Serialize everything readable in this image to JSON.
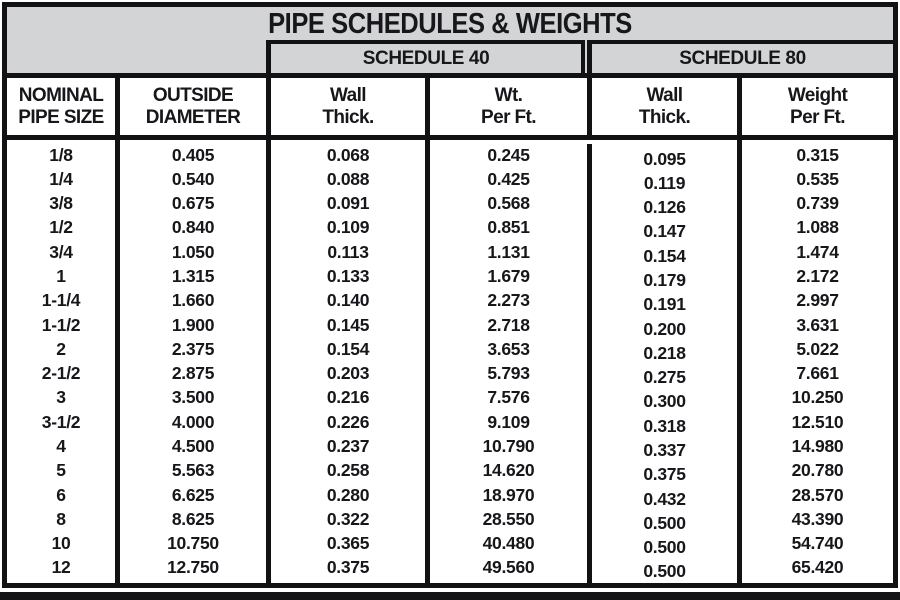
{
  "title": "PIPE SCHEDULES & WEIGHTS",
  "schedules": {
    "s40_label": "SCHEDULE 40",
    "s80_label": "SCHEDULE 80"
  },
  "column_headers": [
    {
      "line1": "NOMINAL",
      "line2": "PIPE SIZE"
    },
    {
      "line1": "OUTSIDE",
      "line2": "DIAMETER"
    },
    {
      "line1": "Wall",
      "line2": "Thick."
    },
    {
      "line1": "Wt.",
      "line2": "Per Ft."
    },
    {
      "line1": "Wall",
      "line2": "Thick."
    },
    {
      "line1": "Weight",
      "line2": "Per Ft."
    }
  ],
  "chart_data": {
    "type": "table",
    "columns": [
      "Nominal Pipe Size",
      "Outside Diameter",
      "Schedule 40 Wall Thick.",
      "Schedule 40 Wt. Per Ft.",
      "Schedule 80 Wall Thick.",
      "Schedule 80 Weight Per Ft."
    ],
    "rows": [
      {
        "size": "1/8",
        "od": "0.405",
        "s40_wall": "0.068",
        "s40_wt": "0.245",
        "s80_wall": "0.095",
        "s80_wt": "0.315"
      },
      {
        "size": "1/4",
        "od": "0.540",
        "s40_wall": "0.088",
        "s40_wt": "0.425",
        "s80_wall": "0.119",
        "s80_wt": "0.535"
      },
      {
        "size": "3/8",
        "od": "0.675",
        "s40_wall": "0.091",
        "s40_wt": "0.568",
        "s80_wall": "0.126",
        "s80_wt": "0.739"
      },
      {
        "size": "1/2",
        "od": "0.840",
        "s40_wall": "0.109",
        "s40_wt": "0.851",
        "s80_wall": "0.147",
        "s80_wt": "1.088"
      },
      {
        "size": "3/4",
        "od": "1.050",
        "s40_wall": "0.113",
        "s40_wt": "1.131",
        "s80_wall": "0.154",
        "s80_wt": "1.474"
      },
      {
        "size": "1",
        "od": "1.315",
        "s40_wall": "0.133",
        "s40_wt": "1.679",
        "s80_wall": "0.179",
        "s80_wt": "2.172"
      },
      {
        "size": "1-1/4",
        "od": "1.660",
        "s40_wall": "0.140",
        "s40_wt": "2.273",
        "s80_wall": "0.191",
        "s80_wt": "2.997"
      },
      {
        "size": "1-1/2",
        "od": "1.900",
        "s40_wall": "0.145",
        "s40_wt": "2.718",
        "s80_wall": "0.200",
        "s80_wt": "3.631"
      },
      {
        "size": "2",
        "od": "2.375",
        "s40_wall": "0.154",
        "s40_wt": "3.653",
        "s80_wall": "0.218",
        "s80_wt": "5.022"
      },
      {
        "size": "2-1/2",
        "od": "2.875",
        "s40_wall": "0.203",
        "s40_wt": "5.793",
        "s80_wall": "0.275",
        "s80_wt": "7.661"
      },
      {
        "size": "3",
        "od": "3.500",
        "s40_wall": "0.216",
        "s40_wt": "7.576",
        "s80_wall": "0.300",
        "s80_wt": "10.250"
      },
      {
        "size": "3-1/2",
        "od": "4.000",
        "s40_wall": "0.226",
        "s40_wt": "9.109",
        "s80_wall": "0.318",
        "s80_wt": "12.510"
      },
      {
        "size": "4",
        "od": "4.500",
        "s40_wall": "0.237",
        "s40_wt": "10.790",
        "s80_wall": "0.337",
        "s80_wt": "14.980"
      },
      {
        "size": "5",
        "od": "5.563",
        "s40_wall": "0.258",
        "s40_wt": "14.620",
        "s80_wall": "0.375",
        "s80_wt": "20.780"
      },
      {
        "size": "6",
        "od": "6.625",
        "s40_wall": "0.280",
        "s40_wt": "18.970",
        "s80_wall": "0.432",
        "s80_wt": "28.570"
      },
      {
        "size": "8",
        "od": "8.625",
        "s40_wall": "0.322",
        "s40_wt": "28.550",
        "s80_wall": "0.500",
        "s80_wt": "43.390"
      },
      {
        "size": "10",
        "od": "10.750",
        "s40_wall": "0.365",
        "s40_wt": "40.480",
        "s80_wall": "0.500",
        "s80_wt": "54.740"
      },
      {
        "size": "12",
        "od": "12.750",
        "s40_wall": "0.375",
        "s40_wt": "49.560",
        "s80_wall": "0.500",
        "s80_wt": "65.420"
      }
    ]
  },
  "colors": {
    "header_bg": "#d3d4d6",
    "border": "#121215",
    "text": "#17171b",
    "bottom_bar": "#141416"
  }
}
